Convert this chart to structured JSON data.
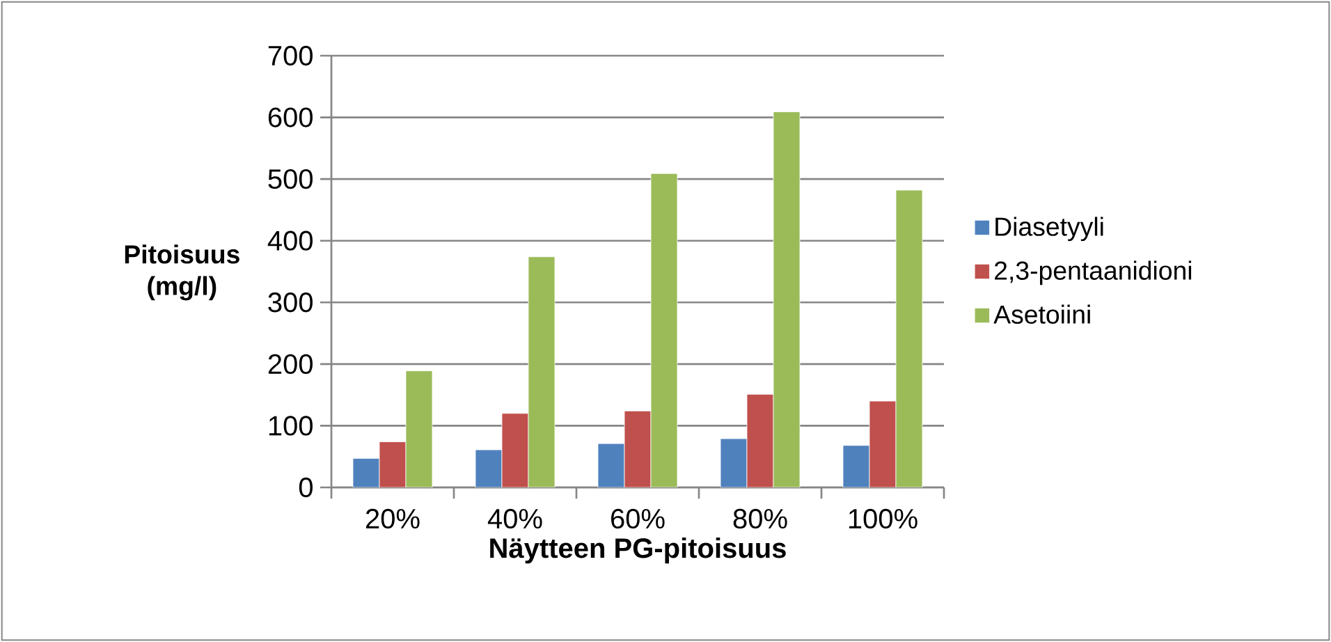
{
  "chart_data": {
    "type": "bar",
    "xlabel": "Näytteen PG-pitoisuus",
    "ylabel": "Pitoisuus (mg/l)",
    "categories": [
      "20%",
      "40%",
      "60%",
      "80%",
      "100%"
    ],
    "series": [
      {
        "name": "Diasetyyli",
        "color": "#4f81bd",
        "values": [
          47,
          61,
          71,
          79,
          68
        ]
      },
      {
        "name": "2,3-pentaanidioni",
        "color": "#c0504d",
        "values": [
          74,
          120,
          124,
          151,
          140
        ]
      },
      {
        "name": "Asetoiini",
        "color": "#9bbb59",
        "values": [
          189,
          374,
          509,
          609,
          482
        ]
      }
    ],
    "ylim": [
      0,
      700
    ],
    "yticks": [
      0,
      100,
      200,
      300,
      400,
      500,
      600,
      700
    ],
    "grid": "y",
    "legend": "right"
  }
}
